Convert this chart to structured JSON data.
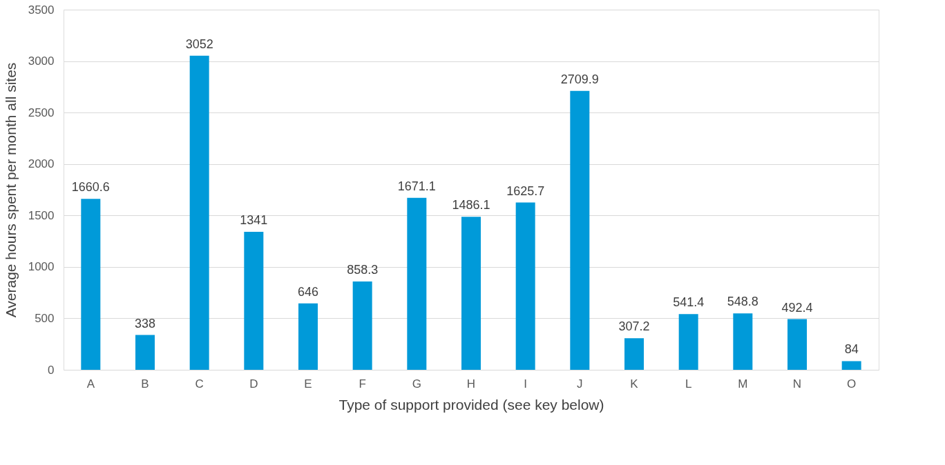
{
  "chart_data": {
    "type": "bar",
    "xlabel": "Type of support provided (see key below)",
    "ylabel": "Average hours spent per month all sites",
    "categories": [
      "A",
      "B",
      "C",
      "D",
      "E",
      "F",
      "G",
      "H",
      "I",
      "J",
      "K",
      "L",
      "M",
      "N",
      "O"
    ],
    "values": [
      1660.6,
      338,
      3052,
      1341,
      646,
      858.3,
      1671.1,
      1486.1,
      1625.7,
      2709.9,
      307.2,
      541.4,
      548.8,
      492.4,
      84
    ],
    "color": "#009ad9",
    "ylim": [
      0,
      3500
    ],
    "yticks": [
      0,
      500,
      1000,
      1500,
      2000,
      2500,
      3000,
      3500
    ],
    "grid": "y",
    "data_labels": true
  }
}
